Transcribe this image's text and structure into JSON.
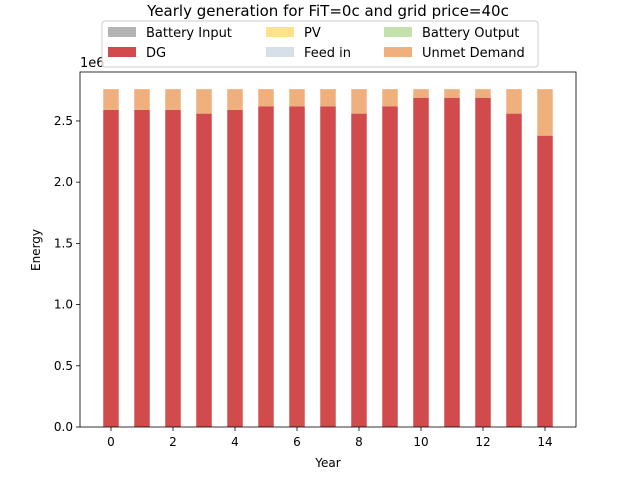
{
  "chart_data": {
    "type": "bar",
    "stacked": true,
    "title": "Yearly generation for FiT=0c and grid price=40c",
    "xlabel": "Year",
    "ylabel": "Energy",
    "y_offset_label": "1e6",
    "categories": [
      0,
      1,
      2,
      3,
      4,
      5,
      6,
      7,
      8,
      9,
      10,
      11,
      12,
      13,
      14
    ],
    "x_ticks": [
      "0",
      "2",
      "4",
      "6",
      "8",
      "10",
      "12",
      "14"
    ],
    "y_ticks": [
      "0.0",
      "0.5",
      "1.0",
      "1.5",
      "2.0",
      "2.5"
    ],
    "xlim": [
      -1,
      15
    ],
    "ylim": [
      0,
      2.9
    ],
    "y_units": "millions",
    "legend_position": "upper center",
    "series": [
      {
        "name": "Battery Input",
        "color": "#b3b3b3",
        "values": [
          0,
          0,
          0,
          0,
          0,
          0,
          0,
          0,
          0,
          0,
          0,
          0,
          0,
          0,
          0
        ]
      },
      {
        "name": "DG",
        "color": "#d14a4c",
        "values": [
          2.59,
          2.59,
          2.59,
          2.56,
          2.59,
          2.62,
          2.62,
          2.62,
          2.56,
          2.62,
          2.69,
          2.69,
          2.69,
          2.56,
          2.38
        ]
      },
      {
        "name": "PV",
        "color": "#fce38a",
        "values": [
          0,
          0,
          0,
          0,
          0,
          0,
          0,
          0,
          0,
          0,
          0,
          0,
          0,
          0,
          0
        ]
      },
      {
        "name": "Feed in",
        "color": "#d6e0e8",
        "values": [
          0,
          0,
          0,
          0,
          0,
          0,
          0,
          0,
          0,
          0,
          0,
          0,
          0,
          0,
          0
        ]
      },
      {
        "name": "Battery Output",
        "color": "#c4e0ab",
        "values": [
          0,
          0,
          0,
          0,
          0,
          0,
          0,
          0,
          0,
          0,
          0,
          0,
          0,
          0,
          0
        ]
      },
      {
        "name": "Unmet Demand",
        "color": "#efb07e",
        "values": [
          0.17,
          0.17,
          0.17,
          0.2,
          0.17,
          0.14,
          0.14,
          0.14,
          0.2,
          0.14,
          0.07,
          0.07,
          0.07,
          0.2,
          0.38
        ]
      }
    ]
  }
}
